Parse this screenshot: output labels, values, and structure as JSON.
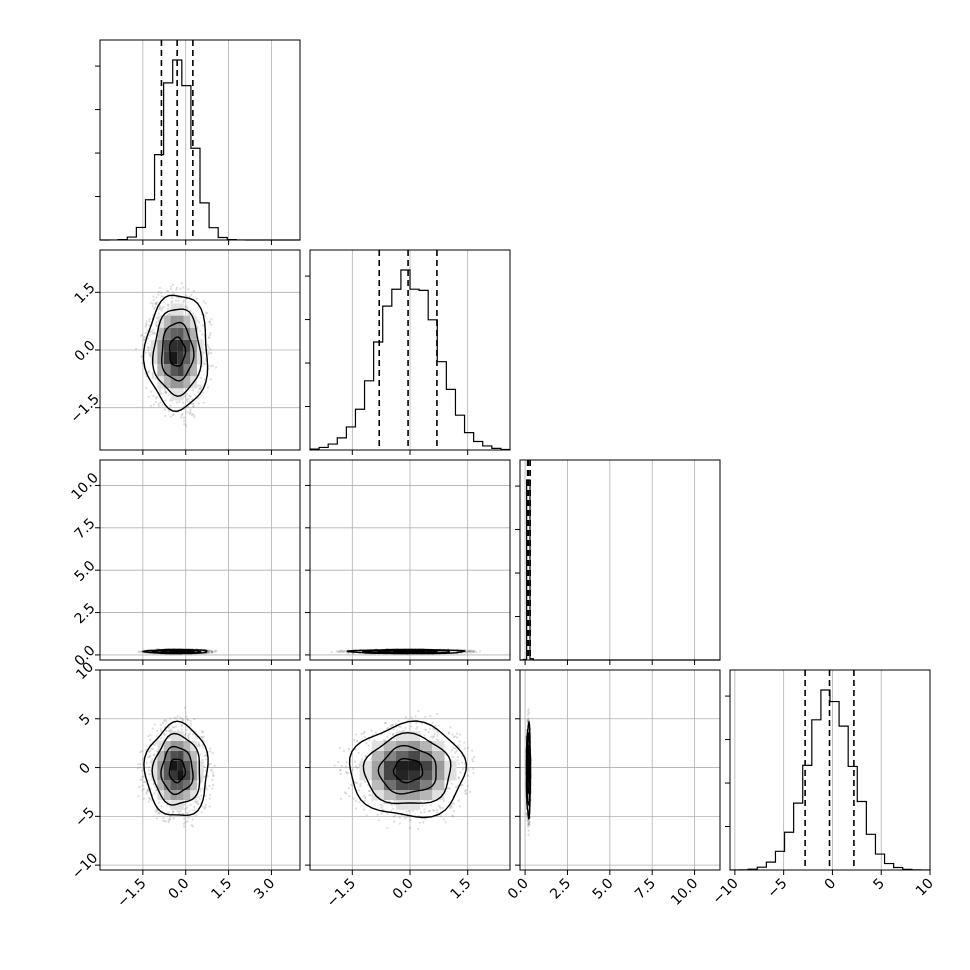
{
  "chart_data": {
    "type": "corner",
    "grid_lines": true,
    "colors": {
      "ink": "#000000",
      "grid": "#b0b0b0",
      "density_light": "#e8e8e8",
      "density_dark": "#000000",
      "scatter": "#777777"
    },
    "parameters": [
      {
        "range": [
          -3.0,
          4.0
        ],
        "ticks": [
          -1.5,
          0.0,
          1.5,
          3.0
        ],
        "tick_labels": [
          "−1.5",
          "0.0",
          "1.5",
          "3.0"
        ],
        "mean": -0.3,
        "std": 0.55,
        "quantiles": [
          -0.85,
          -0.3,
          0.25
        ]
      },
      {
        "range": [
          -2.6,
          2.6
        ],
        "ticks": [
          -1.5,
          0.0,
          1.5
        ],
        "tick_labels": [
          "−1.5",
          "0.0",
          "1.5"
        ],
        "mean": -0.05,
        "std": 0.75,
        "quantiles": [
          -0.8,
          -0.05,
          0.7
        ]
      },
      {
        "range": [
          -0.3,
          11.5
        ],
        "ticks": [
          0.0,
          2.5,
          5.0,
          7.5,
          10.0
        ],
        "tick_labels": [
          "0.0",
          "2.5",
          "5.0",
          "7.5",
          "10.0"
        ],
        "mean": 0.2,
        "std": 0.06,
        "quantiles": [
          0.15,
          0.2,
          0.3
        ]
      },
      {
        "range": [
          -10.5,
          10.0
        ],
        "ticks": [
          -10,
          -5,
          0,
          5,
          10
        ],
        "tick_labels": [
          "−10",
          "−5",
          "0",
          "5",
          "10"
        ],
        "mean": -0.3,
        "std": 2.4,
        "quantiles": [
          -2.8,
          -0.3,
          2.2
        ]
      }
    ],
    "row_tick_labels": {
      "1": [
        "−1.5",
        "0.0",
        "1.5"
      ],
      "2": [
        "0.0",
        "2.5",
        "5.0",
        "7.5",
        "10.0"
      ],
      "3": [
        "−10",
        "−5",
        "0",
        "5",
        "10"
      ]
    },
    "correlations": [
      [
        1,
        0,
        0,
        0
      ],
      [
        0,
        1,
        0,
        0
      ],
      [
        0,
        0,
        1,
        0
      ],
      [
        0,
        0,
        0,
        1
      ]
    ],
    "density_levels_sigma": [
      0.5,
      1.0,
      1.5,
      2.0
    ]
  }
}
